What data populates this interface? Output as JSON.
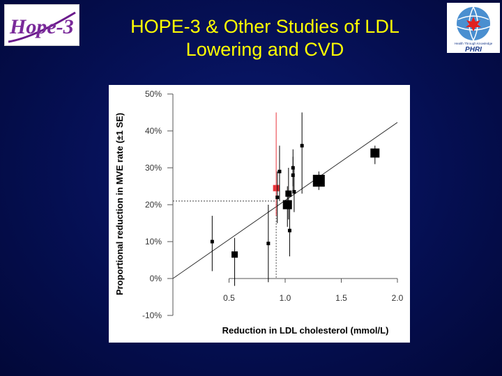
{
  "header": {
    "title_line1": "HOPE-3 & Other Studies of LDL",
    "title_line2": "Lowering and CVD"
  },
  "logos": {
    "left_text": "Hope-3",
    "right_text": "PHRI",
    "right_tagline": "Health Through Knowledge"
  },
  "colors": {
    "background": "#06104f",
    "title": "#ffff00",
    "marker": "#000000",
    "highlight": "#e8333a"
  },
  "chart_data": {
    "type": "scatter",
    "title": "",
    "xlabel": "Reduction in LDL cholesterol (mmol/L)",
    "ylabel": "Proportional reduction in MVE rate (±1 SE)",
    "xlim": [
      0.0,
      2.0
    ],
    "ylim": [
      -10,
      50
    ],
    "xticks": [
      "0.5",
      "1.0",
      "1.5",
      "2.0"
    ],
    "yticks": [
      "-10%",
      "0%",
      "10%",
      "20%",
      "30%",
      "40%",
      "50%"
    ],
    "regression_line": {
      "x": [
        0.0,
        2.0
      ],
      "y": [
        0.0,
        42.3
      ]
    },
    "reference": {
      "x": 0.92,
      "y": 21.0
    },
    "points": [
      {
        "x": 0.35,
        "y": 10.0,
        "lo": 2.0,
        "hi": 17.0,
        "size": 1,
        "highlight": false
      },
      {
        "x": 0.55,
        "y": 6.5,
        "lo": -2.0,
        "hi": 11.0,
        "size": 2,
        "highlight": false
      },
      {
        "x": 0.85,
        "y": 9.5,
        "lo": -1.0,
        "hi": 20.0,
        "size": 1,
        "highlight": false
      },
      {
        "x": 0.92,
        "y": 24.5,
        "lo": 17.0,
        "hi": 45.0,
        "size": 2,
        "highlight": true
      },
      {
        "x": 0.93,
        "y": 22.0,
        "lo": 15.0,
        "hi": 29.0,
        "size": 1,
        "highlight": false
      },
      {
        "x": 0.95,
        "y": 29.0,
        "lo": 21.0,
        "hi": 36.0,
        "size": 1,
        "highlight": false
      },
      {
        "x": 1.02,
        "y": 20.0,
        "lo": 14.0,
        "hi": 25.0,
        "size": 3,
        "highlight": false
      },
      {
        "x": 1.03,
        "y": 23.0,
        "lo": 16.0,
        "hi": 30.0,
        "size": 2,
        "highlight": false
      },
      {
        "x": 1.04,
        "y": 13.0,
        "lo": 6.0,
        "hi": 20.0,
        "size": 1,
        "highlight": false
      },
      {
        "x": 1.07,
        "y": 30.0,
        "lo": 25.0,
        "hi": 35.0,
        "size": 1,
        "highlight": false
      },
      {
        "x": 1.07,
        "y": 28.0,
        "lo": 23.0,
        "hi": 33.0,
        "size": 1,
        "highlight": false
      },
      {
        "x": 1.08,
        "y": 23.5,
        "lo": 18.0,
        "hi": 30.0,
        "size": 1,
        "highlight": false
      },
      {
        "x": 1.15,
        "y": 36.0,
        "lo": 23.0,
        "hi": 45.0,
        "size": 1,
        "highlight": false
      },
      {
        "x": 1.3,
        "y": 26.5,
        "lo": 24.0,
        "hi": 29.0,
        "size": 4,
        "highlight": false
      },
      {
        "x": 1.8,
        "y": 34.0,
        "lo": 31.0,
        "hi": 36.0,
        "size": 3,
        "highlight": false
      }
    ],
    "grid": false,
    "legend": "none"
  }
}
